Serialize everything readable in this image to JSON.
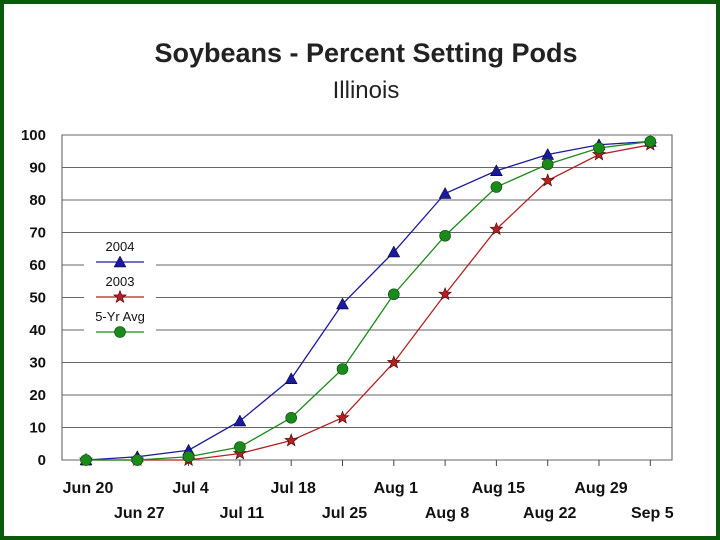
{
  "chart_data": {
    "type": "line",
    "title": "Soybeans - Percent Setting Pods",
    "subtitle": "Illinois",
    "xlabel": "",
    "ylabel": "",
    "ylim": [
      0,
      100
    ],
    "yticks": [
      0,
      10,
      20,
      30,
      40,
      50,
      60,
      70,
      80,
      90,
      100
    ],
    "grid": true,
    "legend_position": "left",
    "categories": [
      "Jun 20",
      "Jun 27",
      "Jul 4",
      "Jul 11",
      "Jul 18",
      "Jul 25",
      "Aug 1",
      "Aug 8",
      "Aug 15",
      "Aug 22",
      "Aug 29",
      "Sep 5"
    ],
    "series": [
      {
        "name": "2004",
        "color": "#1a1aa0",
        "marker": "triangle",
        "values": [
          0,
          1,
          3,
          12,
          25,
          48,
          64,
          82,
          89,
          94,
          97,
          98
        ]
      },
      {
        "name": "2003",
        "color": "#b22222",
        "marker": "star",
        "values": [
          0,
          0,
          0,
          2,
          6,
          13,
          30,
          51,
          71,
          86,
          94,
          97
        ]
      },
      {
        "name": "5-Yr Avg",
        "color": "#1a8a1a",
        "marker": "circle",
        "values": [
          0,
          0,
          1,
          4,
          13,
          28,
          51,
          69,
          84,
          91,
          96,
          98
        ]
      }
    ]
  }
}
